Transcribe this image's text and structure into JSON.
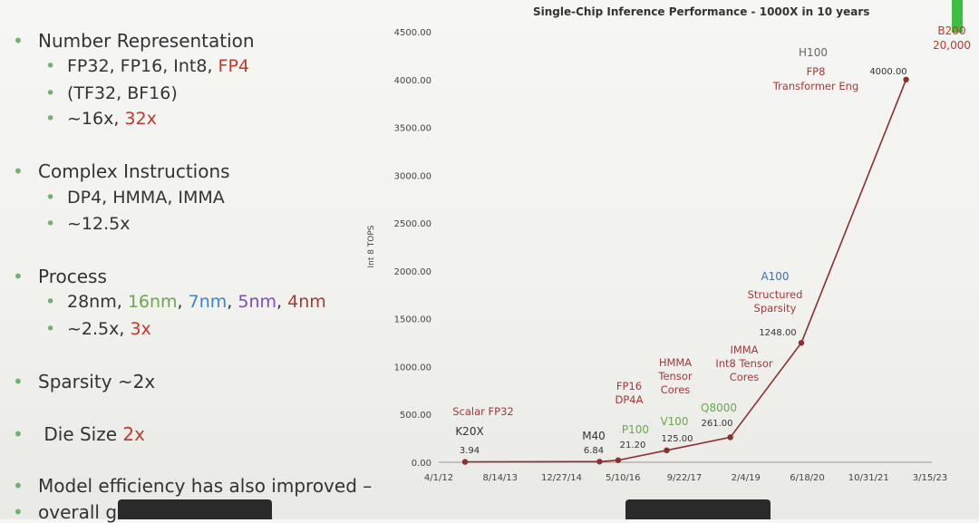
{
  "left_bullets": [
    {
      "text": "Number Representation",
      "top": 33,
      "subs": [
        {
          "parts": [
            {
              "t": "FP32, FP16, Int8, ",
              "c": ""
            },
            {
              "t": "FP4",
              "c": "red"
            }
          ],
          "top": 62
        },
        {
          "parts": [
            {
              "t": "(TF32, BF16)",
              "c": ""
            }
          ],
          "top": 92
        },
        {
          "parts": [
            {
              "t": "~16x, ",
              "c": ""
            },
            {
              "t": "32x",
              "c": "red"
            }
          ],
          "top": 120
        }
      ]
    },
    {
      "text": "Complex Instructions",
      "top": 177,
      "subs": [
        {
          "parts": [
            {
              "t": "DP4, HMMA, IMMA",
              "c": ""
            }
          ],
          "top": 207
        },
        {
          "parts": [
            {
              "t": "~12.5x",
              "c": ""
            }
          ],
          "top": 236
        }
      ]
    },
    {
      "text": "Process",
      "top": 293,
      "subs": [
        {
          "parts": [
            {
              "t": "28nm, ",
              "c": ""
            },
            {
              "t": "16nm",
              "c": "green"
            },
            {
              "t": ", ",
              "c": ""
            },
            {
              "t": "7nm",
              "c": "blue"
            },
            {
              "t": ", ",
              "c": ""
            },
            {
              "t": "5nm",
              "c": "purple"
            },
            {
              "t": ", ",
              "c": ""
            },
            {
              "t": "4nm",
              "c": "maroon"
            }
          ],
          "top": 322
        },
        {
          "parts": [
            {
              "t": "~2.5x, ",
              "c": ""
            },
            {
              "t": "3x",
              "c": "red"
            }
          ],
          "top": 352
        }
      ]
    },
    {
      "text": "Sparsity  ~2x",
      "top": 409,
      "subs": []
    },
    {
      "text": " Die Size ",
      "red": "2x",
      "top": 467,
      "subs": []
    },
    {
      "text": "Model efficiency has also improved –",
      "top": 524,
      "subs": []
    },
    {
      "text": "overall ga",
      "top": 553,
      "subs": []
    }
  ],
  "chart_data": {
    "type": "line",
    "title": "Single-Chip Inference Performance - 1000X in 10 years",
    "ylabel": "Int 8 TOPS",
    "ylim": [
      0,
      4500
    ],
    "yticks": [
      "0.00",
      "500.00",
      "1000.00",
      "1500.00",
      "2000.00",
      "2500.00",
      "3000.00",
      "3500.00",
      "4000.00",
      "4500.00"
    ],
    "xticks": [
      "4/1/12",
      "8/14/13",
      "12/27/14",
      "5/10/16",
      "9/22/17",
      "2/4/19",
      "6/18/20",
      "10/31/21",
      "3/15/23"
    ],
    "xrange": [
      "4/1/12",
      "3/15/23"
    ],
    "points": [
      {
        "date": "11/1/12",
        "value": 3.94,
        "label": "3.94",
        "chip": "K20X",
        "chipColor": "#333",
        "notes": [
          "Scalar FP32"
        ],
        "noteColor": "#a33a3a"
      },
      {
        "date": "11/1/15",
        "value": 6.84,
        "label": "6.84",
        "chip": "M40",
        "chipColor": "#333",
        "notes": [],
        "noteColor": "#a33a3a"
      },
      {
        "date": "4/1/16",
        "value": 21.2,
        "label": "21.20",
        "chip": "P100",
        "chipColor": "#6aa84f",
        "notes": [
          "FP16",
          "DP4A"
        ],
        "noteColor": "#a33a3a"
      },
      {
        "date": "5/1/17",
        "value": 125,
        "label": "125.00",
        "chip": "V100",
        "chipColor": "#6aa84f",
        "notes": [
          "HMMA",
          "Tensor",
          "Cores"
        ],
        "noteColor": "#a33a3a"
      },
      {
        "date": "10/1/18",
        "value": 261,
        "label": "261.00",
        "chip": "Q8000",
        "chipColor": "#6aa84f",
        "notes": [
          "IMMA",
          "Int8 Tensor",
          "Cores"
        ],
        "noteColor": "#a33a3a"
      },
      {
        "date": "5/1/20",
        "value": 1248,
        "label": "1248.00",
        "chip": "A100",
        "chipColor": "#3d6fb5",
        "notes": [
          "Structured",
          "Sparsity"
        ],
        "noteColor": "#a33a3a"
      },
      {
        "date": "9/1/22",
        "value": 4000,
        "label": "4000.00",
        "chip": "H100",
        "chipColor": "#666",
        "notes": [
          "FP8",
          "Transformer Eng"
        ],
        "noteColor": "#a33a3a"
      }
    ],
    "extra_label": {
      "lines": [
        "B200",
        "20,000"
      ],
      "color": "#c0392b"
    },
    "line_color": "#8b2f2f",
    "grid": false
  }
}
